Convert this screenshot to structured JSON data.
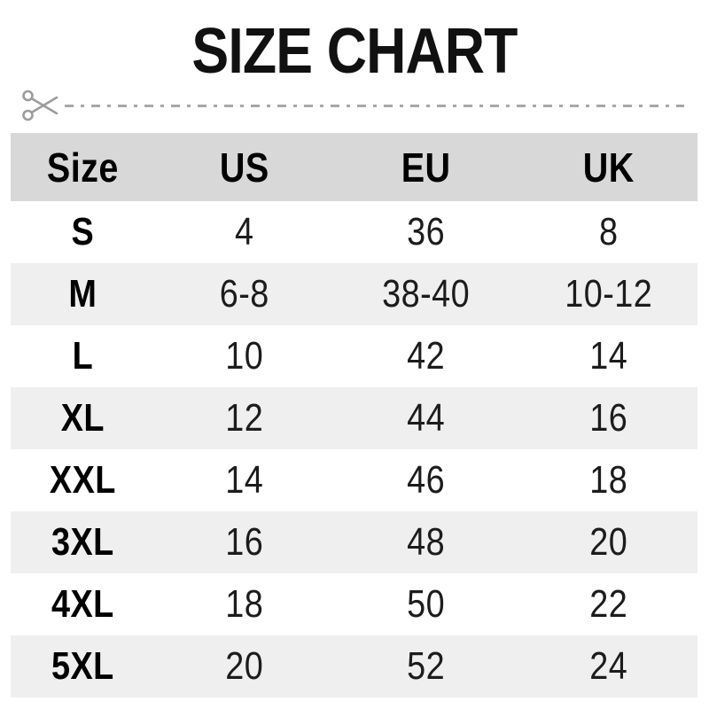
{
  "title": "SIZE CHART",
  "cut_line": {
    "icon": "scissors-icon",
    "color": "#a8a8a8"
  },
  "table": {
    "headers": [
      "Size",
      "US",
      "EU",
      "UK"
    ],
    "rows": [
      [
        "S",
        "4",
        "36",
        "8"
      ],
      [
        "M",
        "6-8",
        "38-40",
        "10-12"
      ],
      [
        "L",
        "10",
        "42",
        "14"
      ],
      [
        "XL",
        "12",
        "44",
        "16"
      ],
      [
        "XXL",
        "14",
        "46",
        "18"
      ],
      [
        "3XL",
        "16",
        "48",
        "20"
      ],
      [
        "4XL",
        "18",
        "50",
        "22"
      ],
      [
        "5XL",
        "20",
        "52",
        "24"
      ]
    ]
  },
  "colors": {
    "header_bg": "#d8d8d8",
    "alt_row_bg": "#efefef",
    "text": "#111111",
    "cut_line_gray": "#a8a8a8"
  },
  "chart_data": {
    "type": "table",
    "title": "SIZE CHART",
    "columns": [
      "Size",
      "US",
      "EU",
      "UK"
    ],
    "rows": [
      [
        "S",
        "4",
        "36",
        "8"
      ],
      [
        "M",
        "6-8",
        "38-40",
        "10-12"
      ],
      [
        "L",
        "10",
        "42",
        "14"
      ],
      [
        "XL",
        "12",
        "44",
        "16"
      ],
      [
        "XXL",
        "14",
        "46",
        "18"
      ],
      [
        "3XL",
        "16",
        "48",
        "20"
      ],
      [
        "4XL",
        "18",
        "50",
        "22"
      ],
      [
        "5XL",
        "20",
        "52",
        "24"
      ]
    ],
    "layout": "header row shaded dark gray; body rows alternate white and light gray; all cells center-aligned"
  }
}
